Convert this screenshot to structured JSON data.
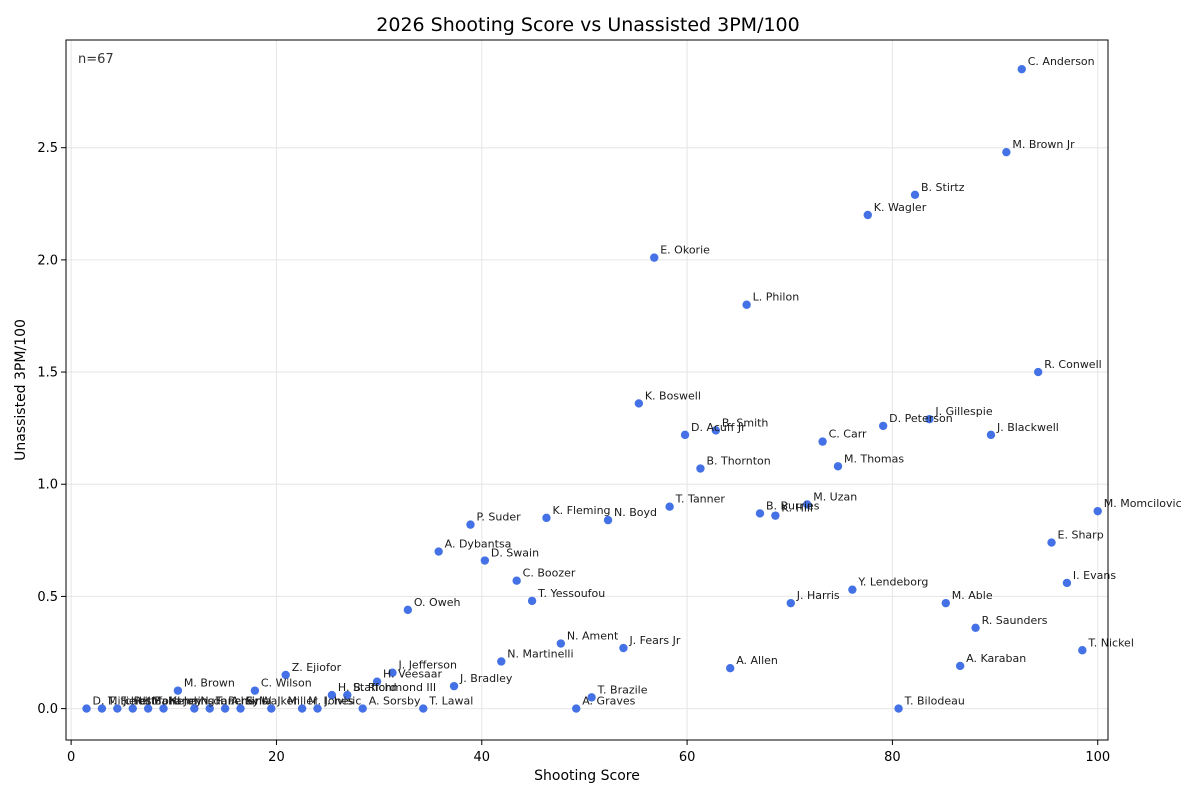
{
  "chart_data": {
    "type": "scatter",
    "title": "2026 Shooting Score vs Unassisted 3PM/100",
    "xlabel": "Shooting Score",
    "ylabel": "Unassisted 3PM/100",
    "annotation": "n=67",
    "xlim": [
      -0.5,
      101
    ],
    "ylim": [
      -0.14,
      2.98
    ],
    "xticks": [
      0,
      20,
      40,
      60,
      80,
      100
    ],
    "xtick_labels": [
      "0",
      "20",
      "40",
      "60",
      "80",
      "100"
    ],
    "yticks": [
      0.0,
      0.5,
      1.0,
      1.5,
      2.0,
      2.5
    ],
    "ytick_labels": [
      "0.0",
      "0.5",
      "1.0",
      "1.5",
      "2.0",
      "2.5"
    ],
    "grid": true,
    "marker_color": "#4472e6",
    "points": [
      {
        "label": "C. Anderson",
        "x": 92.6,
        "y": 2.85
      },
      {
        "label": "M. Brown Jr",
        "x": 91.1,
        "y": 2.48
      },
      {
        "label": "B. Stirtz",
        "x": 82.2,
        "y": 2.29
      },
      {
        "label": "K. Wagler",
        "x": 77.6,
        "y": 2.2
      },
      {
        "label": "E. Okorie",
        "x": 56.8,
        "y": 2.01
      },
      {
        "label": "L. Philon",
        "x": 65.8,
        "y": 1.8
      },
      {
        "label": "R. Conwell",
        "x": 94.2,
        "y": 1.5
      },
      {
        "label": "K. Boswell",
        "x": 55.3,
        "y": 1.36
      },
      {
        "label": "J. Gillespie",
        "x": 83.6,
        "y": 1.29
      },
      {
        "label": "D. Peterson",
        "x": 79.1,
        "y": 1.26
      },
      {
        "label": "B. Smith",
        "x": 62.8,
        "y": 1.24
      },
      {
        "label": "D. Acuff Jr",
        "x": 59.8,
        "y": 1.22
      },
      {
        "label": "J. Blackwell",
        "x": 89.6,
        "y": 1.22
      },
      {
        "label": "C. Carr",
        "x": 73.2,
        "y": 1.19
      },
      {
        "label": "M. Thomas",
        "x": 74.7,
        "y": 1.08
      },
      {
        "label": "B. Thornton",
        "x": 61.3,
        "y": 1.07
      },
      {
        "label": "M. Uzan",
        "x": 71.7,
        "y": 0.91
      },
      {
        "label": "T. Tanner",
        "x": 58.3,
        "y": 0.9
      },
      {
        "label": "M. Momcilovic",
        "x": 100.0,
        "y": 0.88
      },
      {
        "label": "B. Burries",
        "x": 67.1,
        "y": 0.87
      },
      {
        "label": "K. Hill",
        "x": 68.6,
        "y": 0.86
      },
      {
        "label": "K. Fleming",
        "x": 46.3,
        "y": 0.85
      },
      {
        "label": "N. Boyd",
        "x": 52.3,
        "y": 0.84
      },
      {
        "label": "P. Suder",
        "x": 38.9,
        "y": 0.82
      },
      {
        "label": "E. Sharp",
        "x": 95.5,
        "y": 0.74
      },
      {
        "label": "A. Dybantsa",
        "x": 35.8,
        "y": 0.7
      },
      {
        "label": "D. Swain",
        "x": 40.3,
        "y": 0.66
      },
      {
        "label": "C. Boozer",
        "x": 43.4,
        "y": 0.57
      },
      {
        "label": "I. Evans",
        "x": 97.0,
        "y": 0.56
      },
      {
        "label": "Y. Lendeborg",
        "x": 76.1,
        "y": 0.53
      },
      {
        "label": "T. Yessoufou",
        "x": 44.9,
        "y": 0.48
      },
      {
        "label": "J. Harris",
        "x": 70.1,
        "y": 0.47
      },
      {
        "label": "M. Able",
        "x": 85.2,
        "y": 0.47
      },
      {
        "label": "O. Oweh",
        "x": 32.8,
        "y": 0.44
      },
      {
        "label": "R. Saunders",
        "x": 88.1,
        "y": 0.36
      },
      {
        "label": "N. Ament",
        "x": 47.7,
        "y": 0.29
      },
      {
        "label": "J. Fears Jr",
        "x": 53.8,
        "y": 0.27
      },
      {
        "label": "T. Nickel",
        "x": 98.5,
        "y": 0.26
      },
      {
        "label": "N. Martinelli",
        "x": 41.9,
        "y": 0.21
      },
      {
        "label": "A. Karaban",
        "x": 86.6,
        "y": 0.19
      },
      {
        "label": "A. Allen",
        "x": 64.2,
        "y": 0.18
      },
      {
        "label": "J. Jefferson",
        "x": 31.3,
        "y": 0.16
      },
      {
        "label": "Z. Ejiofor",
        "x": 20.9,
        "y": 0.15
      },
      {
        "label": "H. Veesaar",
        "x": 29.8,
        "y": 0.12
      },
      {
        "label": "J. Bradley",
        "x": 37.3,
        "y": 0.1
      },
      {
        "label": "M. Brown",
        "x": 10.4,
        "y": 0.08
      },
      {
        "label": "C. Wilson",
        "x": 17.9,
        "y": 0.08
      },
      {
        "label": "H. Stafford",
        "x": 25.4,
        "y": 0.06
      },
      {
        "label": "B. Richmond III",
        "x": 26.9,
        "y": 0.06
      },
      {
        "label": "T. Brazile",
        "x": 50.7,
        "y": 0.05
      },
      {
        "label": "D. Mitchell",
        "x": 1.5,
        "y": 0.0
      },
      {
        "label": "T. Fields",
        "x": 3.0,
        "y": 0.0
      },
      {
        "label": "J. Pettiford",
        "x": 4.5,
        "y": 0.0
      },
      {
        "label": "L. Mahaney",
        "x": 6.0,
        "y": 0.0
      },
      {
        "label": "B. Henning",
        "x": 7.5,
        "y": 0.0
      },
      {
        "label": "K. Johnson",
        "x": 9.0,
        "y": 0.0
      },
      {
        "label": "N. Fancher",
        "x": 12.0,
        "y": 0.0
      },
      {
        "label": "T. Perkins",
        "x": 13.5,
        "y": 0.0
      },
      {
        "label": "A. Sylla",
        "x": 15.0,
        "y": 0.0
      },
      {
        "label": "S. Walker",
        "x": 16.5,
        "y": 0.0
      },
      {
        "label": "J. Miller",
        "x": 19.5,
        "y": 0.0
      },
      {
        "label": "M. Jones",
        "x": 22.5,
        "y": 0.0
      },
      {
        "label": "I. Ivisic",
        "x": 24.0,
        "y": 0.0
      },
      {
        "label": "A. Sorsby",
        "x": 28.4,
        "y": 0.0
      },
      {
        "label": "T. Lawal",
        "x": 34.3,
        "y": 0.0
      },
      {
        "label": "A. Graves",
        "x": 49.2,
        "y": 0.0
      },
      {
        "label": "T. Bilodeau",
        "x": 80.6,
        "y": 0.0
      }
    ]
  }
}
